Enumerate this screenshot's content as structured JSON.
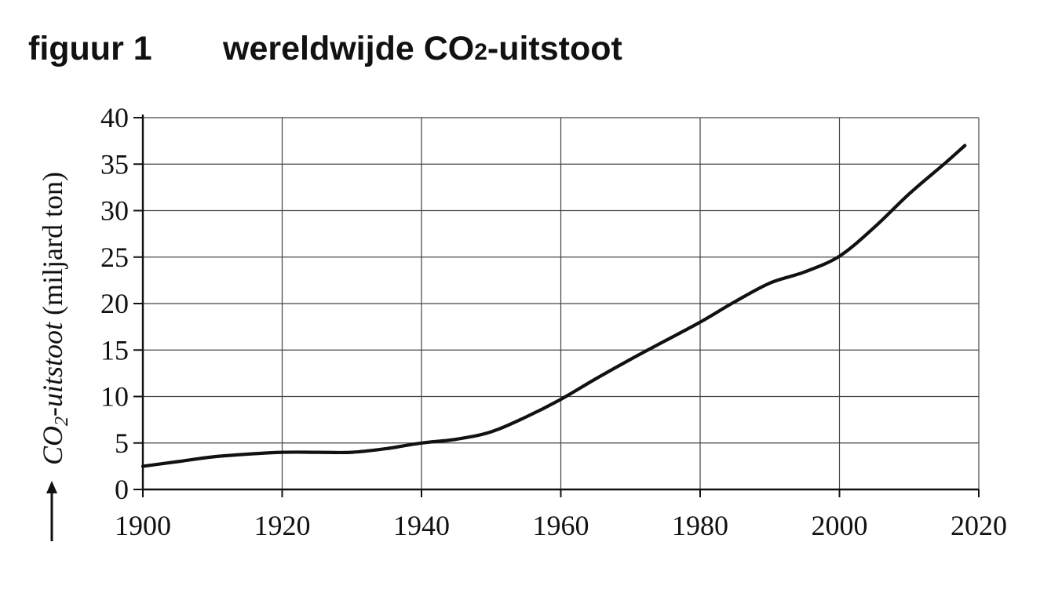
{
  "figure": {
    "label": "figuur 1",
    "title_main": "wereldwijde CO",
    "title_sub": "2",
    "title_rest": "-uitstoot"
  },
  "chart_data": {
    "type": "line",
    "title": "wereldwijde CO2-uitstoot",
    "xlabel": "",
    "ylabel": "CO2-uitstoot (miljard ton)",
    "ylabel_parts": {
      "italic": "CO",
      "sub": "2",
      "italic_rest": "-uitstoot",
      "normal": " (miljard ton)"
    },
    "xlim": [
      1900,
      2020
    ],
    "ylim": [
      0,
      40
    ],
    "x_ticks": [
      "1900",
      "1920",
      "1940",
      "1960",
      "1980",
      "2000",
      "2020"
    ],
    "y_ticks": [
      "0",
      "5",
      "10",
      "15",
      "20",
      "25",
      "30",
      "35",
      "40"
    ],
    "grid": true,
    "series": [
      {
        "x": [
          1900,
          1905,
          1910,
          1915,
          1920,
          1925,
          1930,
          1935,
          1940,
          1945,
          1950,
          1955,
          1960,
          1965,
          1970,
          1975,
          1980,
          1985,
          1990,
          1995,
          2000,
          2005,
          2010,
          2015,
          2018
        ],
        "y": [
          2.5,
          3.0,
          3.5,
          3.8,
          4.0,
          4.0,
          4.0,
          4.4,
          5.0,
          5.4,
          6.2,
          7.8,
          9.7,
          11.9,
          14.0,
          16.0,
          18.0,
          20.2,
          22.2,
          23.4,
          25.1,
          28.2,
          31.8,
          35.0,
          37.0
        ]
      }
    ]
  }
}
